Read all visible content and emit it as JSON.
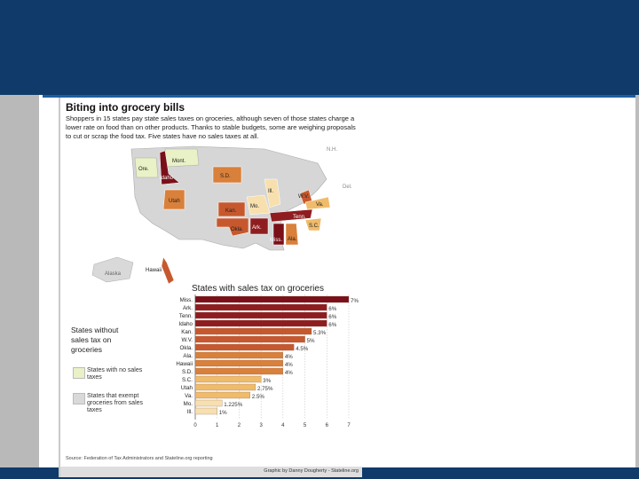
{
  "graphic": {
    "title": "Biting into grocery bills",
    "intro": "Shoppers in 15 states pay state sales taxes on groceries, although seven of those states charge a lower rate on food than on other products. Thanks to stable budgets, some are weighing proposals to cut or scrap the food tax. Five states have no sales taxes at all.",
    "source": "Source: Federation of Tax Administrators and Stateline.org reporting",
    "credit": "Graphic by Danny Dougherty - Stateline.org"
  },
  "map": {
    "labels": {
      "mont": "Mont.",
      "ore": "Ore.",
      "idaho": "Idaho",
      "sd": "S.D.",
      "utah": "Utah",
      "ill": "Ill.",
      "mo": "Mo.",
      "kan": "Kan.",
      "okla": "Okla.",
      "ark": "Ark.",
      "tenn": "Tenn.",
      "miss": "Miss.",
      "ala": "Ala.",
      "va": "Va.",
      "wv": "W.V.",
      "sc": "S.C.",
      "nh": "N.H.",
      "del": "Del.",
      "alaska": "Alaska",
      "hawaii": "Hawaii"
    }
  },
  "legend": {
    "title": "States without sales tax on groceries",
    "items": [
      {
        "label": "States with no sales taxes",
        "color": "#e9f1c6"
      },
      {
        "label": "States that exempt groceries from sales taxes",
        "color": "#d9d9d9"
      }
    ]
  },
  "colors": {
    "banner": "#0f3a6a",
    "tier_7": "#7a1019",
    "tier_6": "#8f1d1f",
    "tier_5": "#c7582d",
    "tier_4": "#d9803a",
    "tier_3": "#f0bb6a",
    "tier_1": "#f8e0ae",
    "exempt_states": "#d9d9d9",
    "no_tax_states": "#e9f1c6"
  },
  "chart_data": {
    "type": "bar",
    "orientation": "horizontal",
    "title": "States with sales tax on groceries",
    "categories": [
      "Miss.",
      "Ark.",
      "Tenn.",
      "Idaho",
      "Kan.",
      "W.V.",
      "Okla.",
      "Ala.",
      "Hawaii",
      "S.D.",
      "S.C.",
      "Utah",
      "Va.",
      "Mo.",
      "Ill."
    ],
    "values": [
      7,
      6,
      6,
      6,
      5.3,
      5,
      4.5,
      4,
      4,
      4,
      3,
      2.75,
      2.5,
      1.225,
      1
    ],
    "value_labels": [
      "7%",
      "6%",
      "6%",
      "6%",
      "5.3%",
      "5%",
      "4.5%",
      "4%",
      "4%",
      "4%",
      "3%",
      "2.75%",
      "2.5%",
      "1.225%",
      "1%"
    ],
    "xlim": [
      0,
      7
    ],
    "xticks": [
      "0",
      "1",
      "2",
      "3",
      "4",
      "5",
      "6",
      "7"
    ],
    "grid": true
  }
}
